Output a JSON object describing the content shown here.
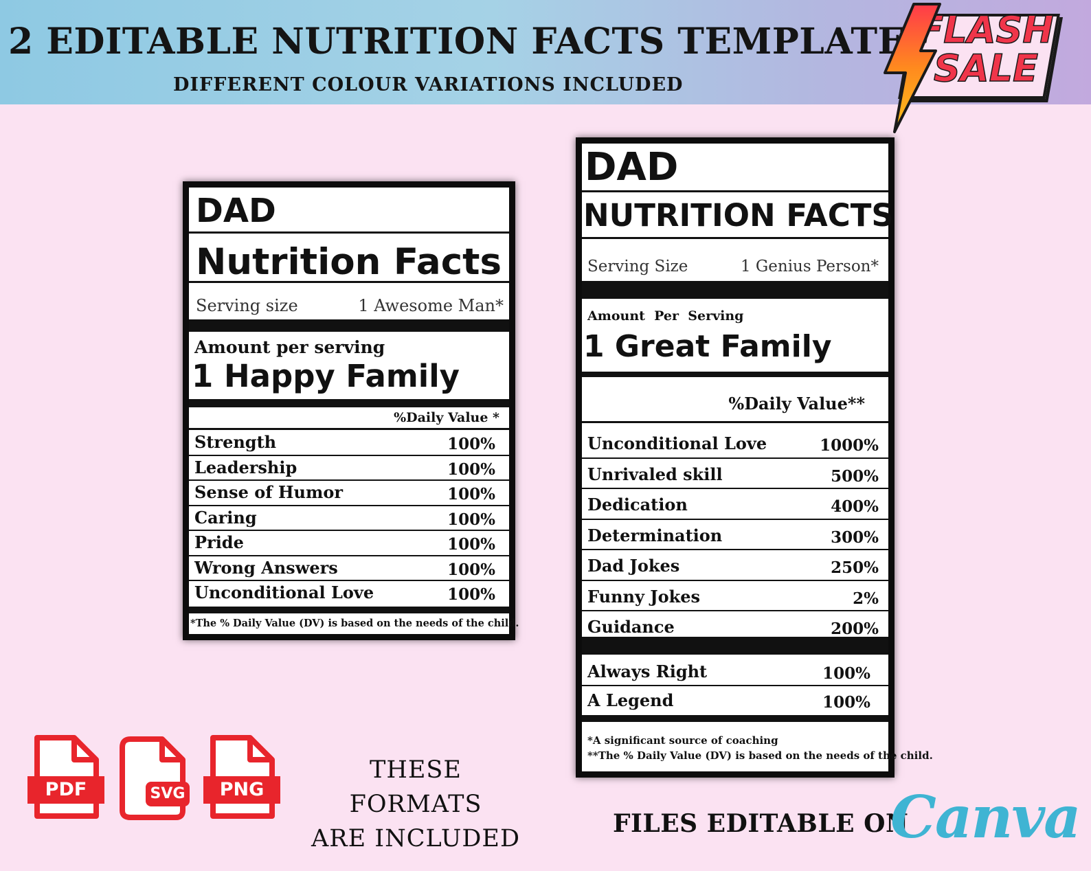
{
  "banner": {
    "title": "2 EDITABLE NUTRITION FACTS TEMPLATE",
    "subtitle": "DIFFERENT COLOUR VARIATIONS INCLUDED",
    "flash_sale": [
      "FLASH",
      "SALE"
    ]
  },
  "label_left": {
    "heading": "DAD",
    "title": "Nutrition Facts",
    "serving_label": "Serving size",
    "serving_value": "1 Awesome Man*",
    "amount_label": "Amount per serving",
    "amount_value": "1 Happy Family",
    "daily_value_header": "%Daily Value *",
    "rows": [
      {
        "name": "Strength",
        "value": "100%"
      },
      {
        "name": "Leadership",
        "value": "100%"
      },
      {
        "name": "Sense of Humor",
        "value": "100%"
      },
      {
        "name": "Caring",
        "value": "100%"
      },
      {
        "name": "Pride",
        "value": "100%"
      },
      {
        "name": "Wrong Answers",
        "value": "100%"
      },
      {
        "name": "Unconditional Love",
        "value": "100%"
      }
    ],
    "footnote": "*The % Daily Value (DV) is based on the needs of the child."
  },
  "label_right": {
    "heading": "DAD",
    "title": "NUTRITION FACTS",
    "serving_label": "Serving Size",
    "serving_value": "1 Genius Person*",
    "amount_label": "Amount  Per  Serving",
    "amount_value": "1 Great Family",
    "daily_value_header": "%Daily Value**",
    "rows": [
      {
        "name": "Unconditional Love",
        "value": "1000%"
      },
      {
        "name": "Unrivaled skill",
        "value": "500%"
      },
      {
        "name": "Dedication",
        "value": "400%"
      },
      {
        "name": "Determination",
        "value": "300%"
      },
      {
        "name": "Dad Jokes",
        "value": "250%"
      },
      {
        "name": "Funny Jokes",
        "value": "2%"
      },
      {
        "name": "Guidance",
        "value": "200%"
      }
    ],
    "extra_rows": [
      {
        "name": "Always Right",
        "value": "100%"
      },
      {
        "name": "A Legend",
        "value": "100%"
      }
    ],
    "footnote_1": "*A significant source of coaching",
    "footnote_2": "**The % Daily Value (DV) is based on the needs of the child."
  },
  "formats": {
    "icons": [
      "PDF",
      "SVG",
      "PNG"
    ],
    "icon_color": "#e8252c",
    "text_line_1": "THESE FORMATS",
    "text_line_2": "ARE INCLUDED"
  },
  "editable": {
    "text": "FILES EDITABLE ON",
    "brand": "Canva"
  }
}
